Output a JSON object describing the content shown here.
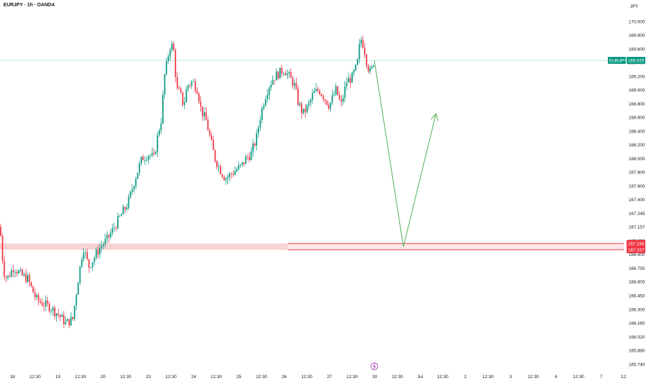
{
  "header": {
    "symbol_title": "EURJPY · 1h · OANDA",
    "currency": "JPY"
  },
  "colors": {
    "up": "#089981",
    "down": "#F23645",
    "zone_fill": "#F9D2D4",
    "zone_line": "#F23645",
    "arrow": "#4CAF50",
    "price_line": "#7FD3C7"
  },
  "chart_data": {
    "type": "candlestick",
    "ylim": [
      165.6,
      170.2
    ],
    "y_ticks": [
      "170.000",
      "169.800",
      "169.600",
      "169.400",
      "169.200",
      "169.000",
      "168.800",
      "168.600",
      "168.400",
      "168.200",
      "168.000",
      "167.800",
      "167.600",
      "167.400",
      "167.245",
      "167.157",
      "167.050",
      "166.900",
      "166.750",
      "166.600",
      "166.450",
      "166.300",
      "166.160",
      "166.020",
      "165.880",
      "165.740"
    ],
    "x_ticks": [
      "18",
      "12:30",
      "19",
      "12:30",
      "20",
      "12:30",
      "23",
      "12:30",
      "24",
      "12:30",
      "25",
      "12:30",
      "26",
      "12:30",
      "27",
      "12:30",
      "30",
      "12:30",
      "Jul",
      "12:30",
      "2",
      "12:30",
      "3",
      "12:30",
      "4",
      "12:30",
      "7",
      "12:"
    ],
    "current_price": {
      "symbol": "EURJPY",
      "value": 169.525
    },
    "support_zone": {
      "top": 167.245,
      "bottom": 167.157
    },
    "projection_path": [
      {
        "x": "30 00:00",
        "y": 169.525
      },
      {
        "x": "30 14:00",
        "y": 167.2
      },
      {
        "x": "Jul 03:00",
        "y": 168.85
      }
    ],
    "price_path": [
      [
        0,
        167.45
      ],
      [
        5,
        166.9
      ],
      [
        10,
        166.8
      ],
      [
        20,
        166.95
      ],
      [
        30,
        166.85
      ],
      [
        40,
        166.8
      ],
      [
        52,
        166.55
      ],
      [
        60,
        166.5
      ],
      [
        72,
        166.45
      ],
      [
        85,
        166.35
      ],
      [
        95,
        166.25
      ],
      [
        105,
        166.3
      ],
      [
        112,
        166.75
      ],
      [
        120,
        167.2
      ],
      [
        128,
        166.95
      ],
      [
        135,
        167.05
      ],
      [
        145,
        167.2
      ],
      [
        155,
        167.3
      ],
      [
        165,
        167.45
      ],
      [
        175,
        167.6
      ],
      [
        185,
        167.75
      ],
      [
        195,
        168.05
      ],
      [
        205,
        168.3
      ],
      [
        215,
        168.35
      ],
      [
        222,
        168.3
      ],
      [
        228,
        168.6
      ],
      [
        233,
        168.8
      ],
      [
        237,
        169.3
      ],
      [
        241,
        169.5
      ],
      [
        245,
        169.7
      ],
      [
        250,
        169.7
      ],
      [
        255,
        169.15
      ],
      [
        260,
        169.1
      ],
      [
        265,
        168.95
      ],
      [
        270,
        169.2
      ],
      [
        278,
        169.25
      ],
      [
        285,
        169.15
      ],
      [
        290,
        168.9
      ],
      [
        298,
        168.75
      ],
      [
        303,
        168.55
      ],
      [
        310,
        168.3
      ],
      [
        318,
        168.15
      ],
      [
        325,
        168.05
      ],
      [
        333,
        168.1
      ],
      [
        340,
        168.15
      ],
      [
        348,
        168.2
      ],
      [
        355,
        168.3
      ],
      [
        362,
        168.35
      ],
      [
        370,
        168.55
      ],
      [
        375,
        168.8
      ],
      [
        382,
        169.05
      ],
      [
        388,
        169.2
      ],
      [
        395,
        169.3
      ],
      [
        402,
        169.35
      ],
      [
        410,
        169.4
      ],
      [
        418,
        169.3
      ],
      [
        425,
        169.2
      ],
      [
        430,
        169.0
      ],
      [
        437,
        168.85
      ],
      [
        445,
        168.95
      ],
      [
        452,
        169.1
      ],
      [
        460,
        169.15
      ],
      [
        468,
        169.05
      ],
      [
        475,
        168.95
      ],
      [
        485,
        169.15
      ],
      [
        492,
        168.95
      ],
      [
        500,
        169.25
      ],
      [
        508,
        169.3
      ],
      [
        515,
        169.45
      ],
      [
        520,
        169.8
      ],
      [
        525,
        169.7
      ],
      [
        530,
        169.45
      ],
      [
        535,
        169.35
      ],
      [
        540,
        169.53
      ]
    ]
  }
}
